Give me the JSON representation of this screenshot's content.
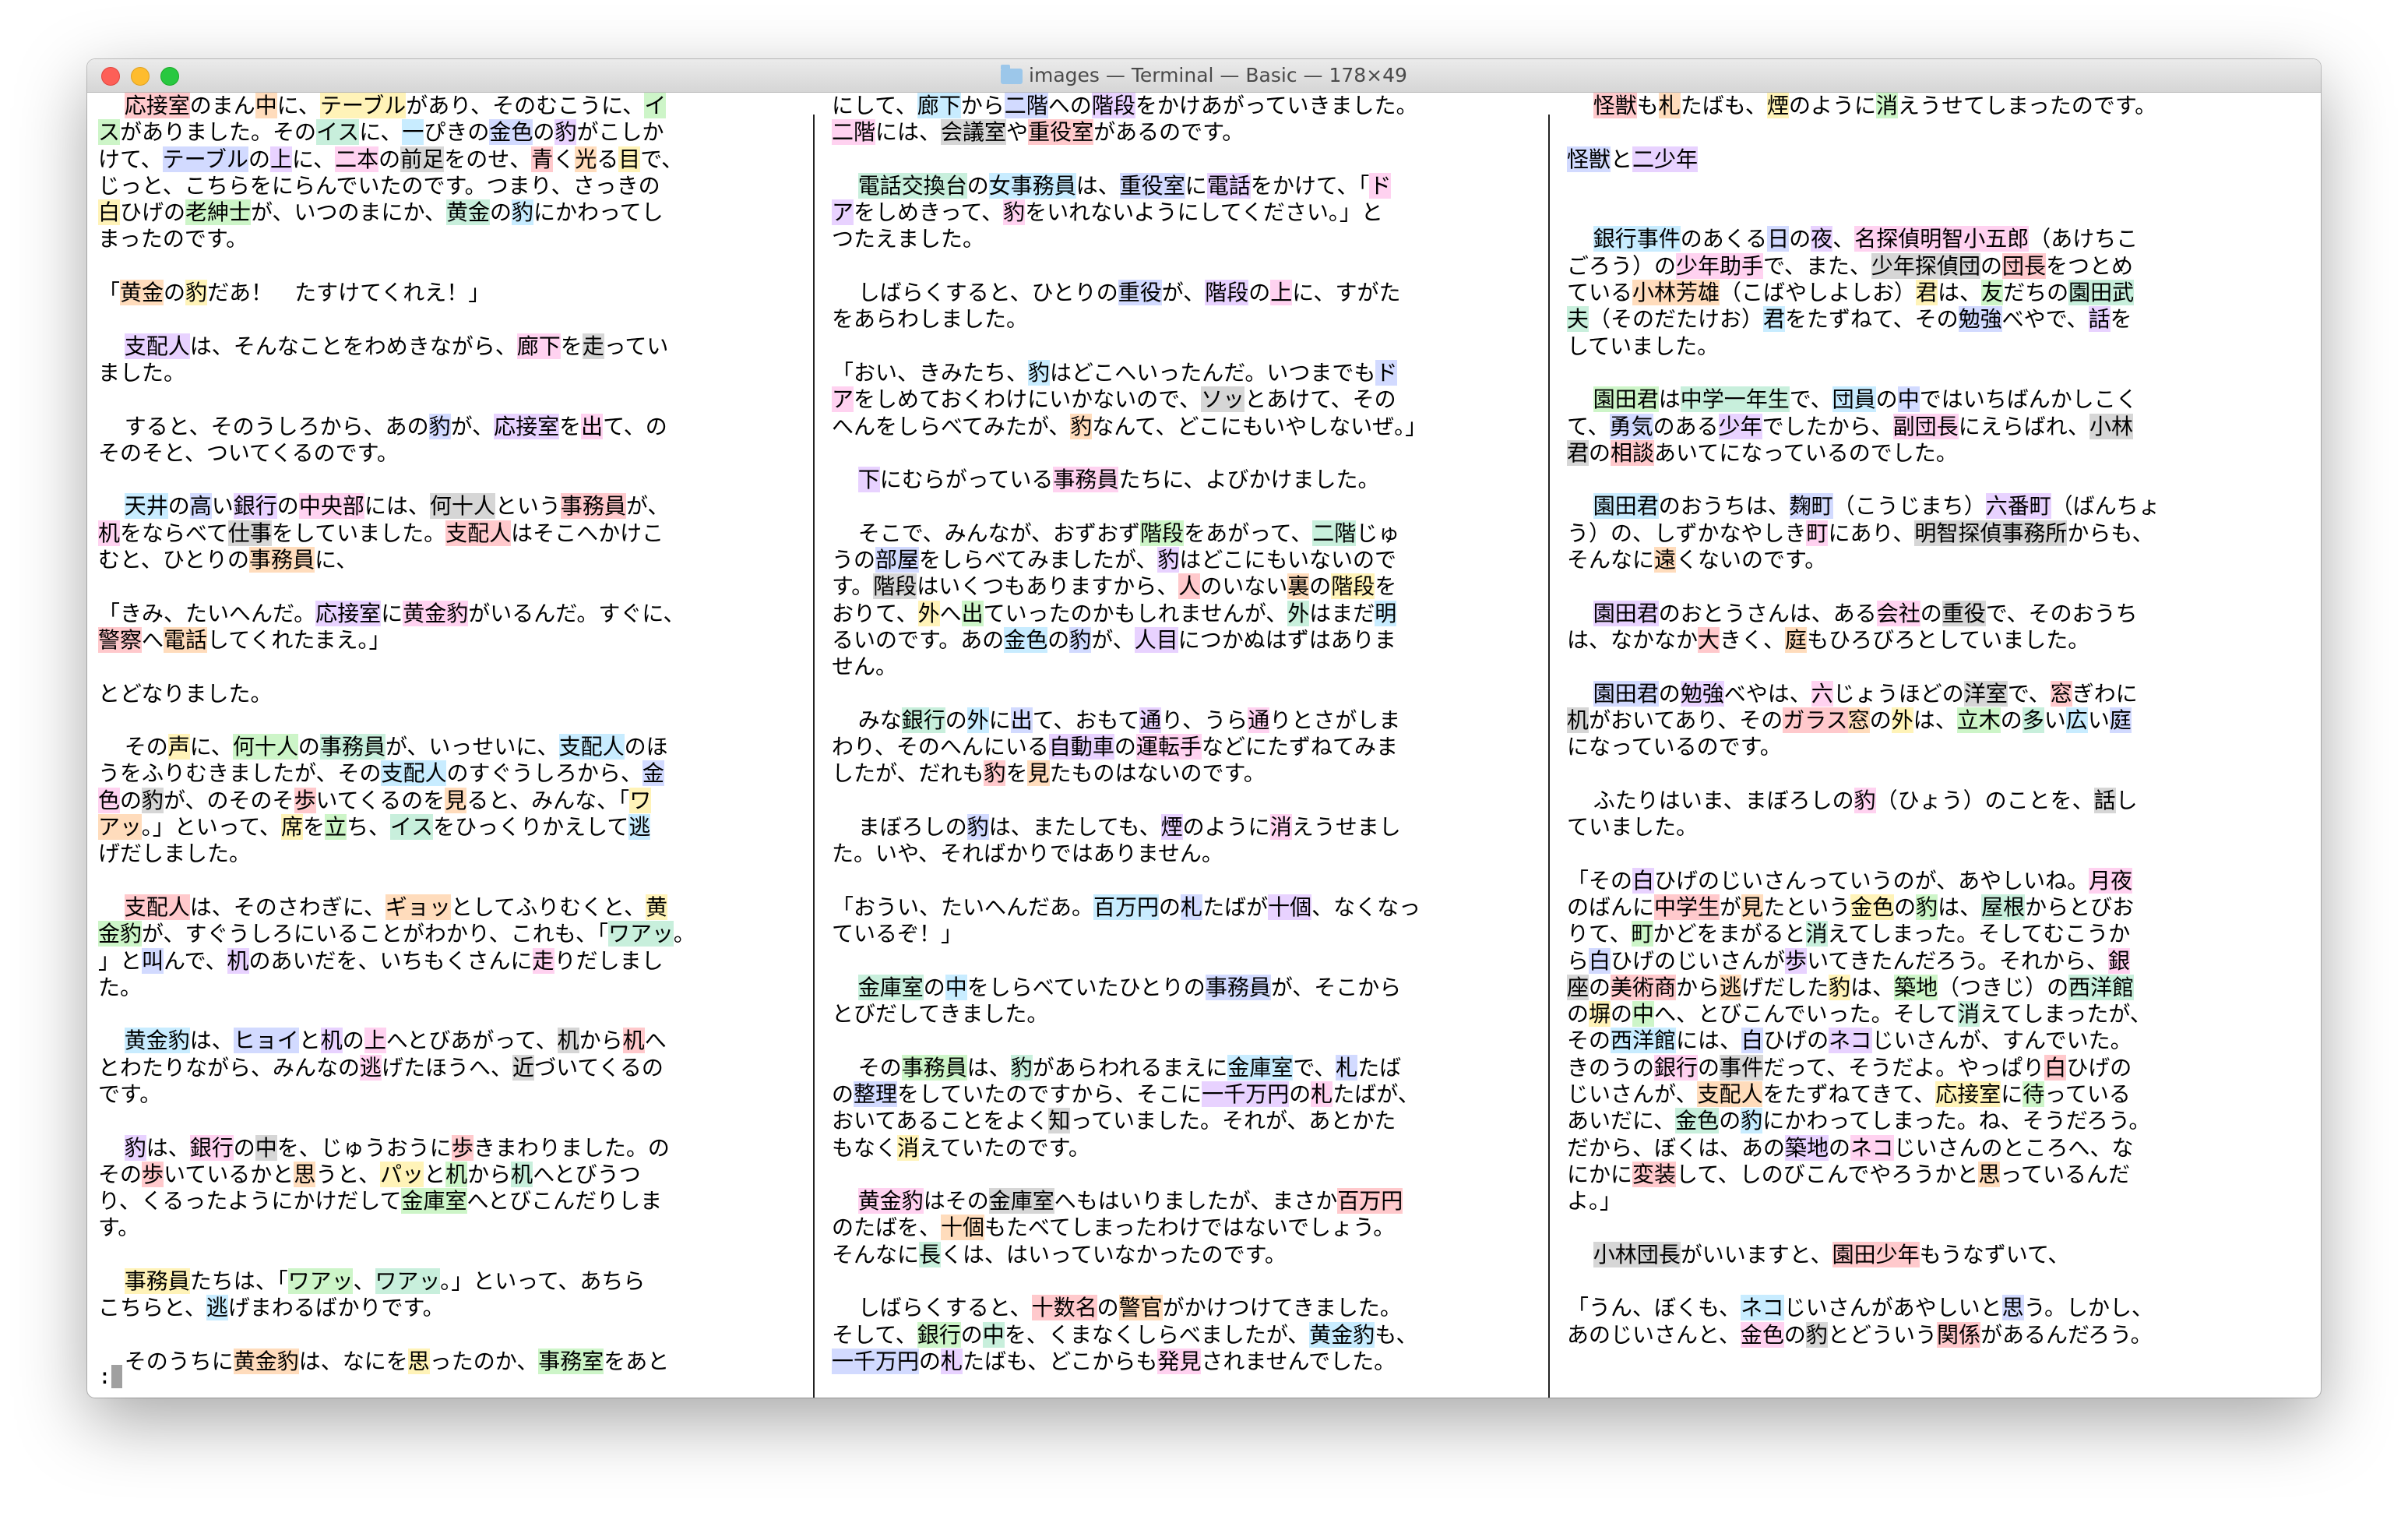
{
  "window": {
    "title": "images — Terminal — Basic — 178×49",
    "folder_icon": "folder-icon"
  },
  "columns": [
    [
      "  応接室のまん中に、テーブルがあり、そのむこうに、イ",
      "スがありました。そのイスに、一ぴきの金色の豹がこしか",
      "けて、テーブルの上に、二本の前足をのせ、青く光る目で、",
      "じっと、こちらをにらんでいたのです。つまり、さっきの",
      "白ひげの老紳士が、いつのまにか、黄金の豹にかわってし",
      "まったのです。",
      "",
      "「黄金の豹だあ！　たすけてくれえ！」",
      "",
      "  支配人は、そんなことをわめきながら、廊下を走ってい",
      "ました。",
      "",
      "  すると、そのうしろから、あの豹が、応接室を出て、の",
      "そのそと、ついてくるのです。",
      "",
      "  天井の高い銀行の中央部には、何十人という事務員が、",
      "机をならべて仕事をしていました。支配人はそこへかけこ",
      "むと、ひとりの事務員に、",
      "",
      "「きみ、たいへんだ。応接室に黄金豹がいるんだ。すぐに、",
      "警察へ電話してくれたまえ。」",
      "",
      "とどなりました。",
      "",
      "  その声に、何十人の事務員が、いっせいに、支配人のほ",
      "うをふりむきましたが、その支配人のすぐうしろから、金",
      "色の豹が、のそのそ歩いてくるのを見ると、みんな、「ワ",
      "アッ。」といって、席を立ち、イスをひっくりかえして逃",
      "げだしました。",
      "",
      "  支配人は、そのさわぎに、ギョッとしてふりむくと、黄",
      "金豹が、すぐうしろにいることがわかり、これも、「ワアッ。",
      "」と叫んで、机のあいだを、いちもくさんに走りだしまし",
      "た。",
      "",
      "  黄金豹は、ヒョイと机の上へとびあがって、机から机へ",
      "とわたりながら、みんなの逃げたほうへ、近づいてくるの",
      "です。",
      "",
      "  豹は、銀行の中を、じゅうおうに歩きまわりました。の",
      "その歩いているかと思うと、パッと机から机へとびうつ",
      "り、くるったようにかけだして金庫室へとびこんだりしま",
      "す。",
      "",
      "  事務員たちは、「ワアッ、ワアッ。」といって、あちら",
      "こちらと、逃げまわるばかりです。",
      "",
      "  そのうちに黄金豹は、なにを思ったのか、事務室をあと"
    ],
    [
      "にして、廊下から二階への階段をかけあがっていきました。",
      "二階には、会議室や重役室があるのです。",
      "",
      "  電話交換台の女事務員は、重役室に電話をかけて、「ド",
      "アをしめきって、豹をいれないようにしてください。」と",
      "つたえました。",
      "",
      "  しばらくすると、ひとりの重役が、階段の上に、すがた",
      "をあらわしました。",
      "",
      "「おい、きみたち、豹はどこへいったんだ。いつまでもド",
      "アをしめておくわけにいかないので、ソッとあけて、その",
      "へんをしらべてみたが、豹なんて、どこにもいやしないぜ。」",
      "",
      "  下にむらがっている事務員たちに、よびかけました。",
      "",
      "  そこで、みんなが、おずおず階段をあがって、二階じゅ",
      "うの部屋をしらべてみましたが、豹はどこにもいないので",
      "す。階段はいくつもありますから、人のいない裏の階段を",
      "おりて、外へ出ていったのかもしれませんが、外はまだ明",
      "るいのです。あの金色の豹が、人目につかぬはずはありま",
      "せん。",
      "",
      "  みな銀行の外に出て、おもて通り、うら通りとさがしま",
      "わり、そのへんにいる自動車の運転手などにたずねてみま",
      "したが、だれも豹を見たものはないのです。",
      "",
      "  まぼろしの豹は、またしても、煙のように消えうせまし",
      "た。いや、そればかりではありません。",
      "",
      "「おうい、たいへんだあ。百万円の札たばが十個、なくなっ",
      "ているぞ！」",
      "",
      "  金庫室の中をしらべていたひとりの事務員が、そこから",
      "とびだしてきました。",
      "",
      "  その事務員は、豹があらわれるまえに金庫室で、札たば",
      "の整理をしていたのですから、そこに一千万円の札たばが、",
      "おいてあることをよく知っていました。それが、あとかた",
      "もなく消えていたのです。",
      "",
      "  黄金豹はその金庫室へもはいりましたが、まさか百万円",
      "のたばを、十個もたべてしまったわけではないでしょう。",
      "そんなに長くは、はいっていなかったのです。",
      "",
      "  しばらくすると、十数名の警官がかけつけてきました。",
      "そして、銀行の中を、くまなくしらべましたが、黄金豹も、",
      "一千万円の札たばも、どこからも発見されませんでした。"
    ],
    [
      "  怪獣も札たばも、煙のように消えうせてしまったのです。",
      "",
      "怪獣と二少年",
      "",
      "",
      "  銀行事件のあくる日の夜、名探偵明智小五郎（あけちこ",
      "ごろう）の少年助手で、また、少年探偵団の団長をつとめ",
      "ている小林芳雄（こばやしよしお）君は、友だちの園田武",
      "夫（そのだたけお）君をたずねて、その勉強べやで、話を",
      "していました。",
      "",
      "  園田君は中学一年生で、団員の中ではいちばんかしこく",
      "て、勇気のある少年でしたから、副団長にえらばれ、小林",
      "君の相談あいてになっているのでした。",
      "",
      "  園田君のおうちは、麹町（こうじまち）六番町（ばんちょ",
      "う）の、しずかなやしき町にあり、明智探偵事務所からも、",
      "そんなに遠くないのです。",
      "",
      "  園田君のおとうさんは、ある会社の重役で、そのおうち",
      "は、なかなか大きく、庭もひろびろとしていました。",
      "",
      "  園田君の勉強べやは、六じょうほどの洋室で、窓ぎわに",
      "机がおいてあり、そのガラス窓の外は、立木の多い広い庭",
      "になっているのです。",
      "",
      "  ふたりはいま、まぼろしの豹（ひょう）のことを、話し",
      "ていました。",
      "",
      "「その白ひげのじいさんっていうのが、あやしいね。月夜",
      "のばんに中学生が見たという金色の豹は、屋根からとびお",
      "りて、町かどをまがると消えてしまった。そしてむこうか",
      "ら白ひげのじいさんが歩いてきたんだろう。それから、銀",
      "座の美術商から逃げだした豹は、築地（つきじ）の西洋館",
      "の塀の中へ、とびこんでいった。そして消えてしまったが、",
      "その西洋館には、白ひげのネコじいさんが、すんでいた。",
      "きのうの銀行の事件だって、そうだよ。やっぱり白ひげの",
      "じいさんが、支配人をたずねてきて、応接室に待っている",
      "あいだに、金色の豹にかわってしまった。ね、そうだろう。",
      "だから、ぼくは、あの築地のネコじいさんのところへ、な",
      "にかに変装して、しのびこんでやろうかと思っているんだ",
      "よ。」",
      "",
      "  小林団長がいいますと、園田少年もうなずいて、",
      "",
      "「うん、ぼくも、ネコじいさんがあやしいと思う。しかし、",
      "あのじいさんと、金色の豹とどういう関係があるんだろう。"
    ]
  ],
  "highlight_colors": [
    "#ffc9cc",
    "#ffdcbc",
    "#fff3b8",
    "#cdf5c8",
    "#c8efdc",
    "#c8ecff",
    "#d2daff",
    "#e8d2ff",
    "#ffd2f0",
    "#d6d6d6"
  ],
  "prompt": ":"
}
